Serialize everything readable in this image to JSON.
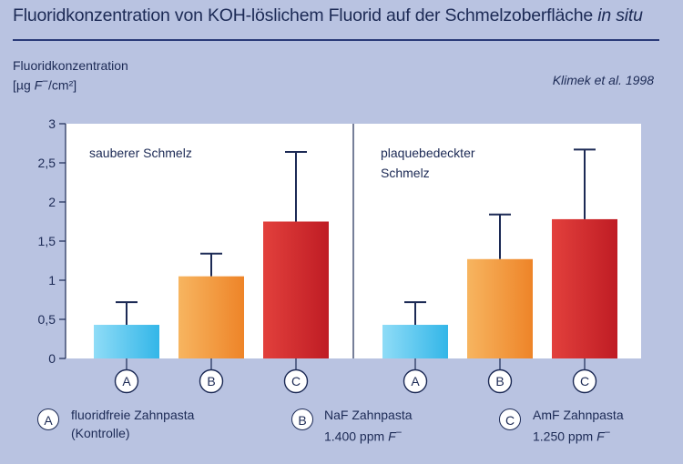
{
  "title": {
    "main": "Fluoridkonzentration von KOH-löslichem Fluorid auf der Schmelzoberfläche ",
    "italic": "in situ"
  },
  "ylabel": {
    "line1": "Fluoridkonzentration",
    "line2_pre": "[µg ",
    "line2_italic": "F",
    "line2_sup": "−",
    "line2_post": "/cm²]"
  },
  "source": "Klimek et al. 1998",
  "colors": {
    "background": "#b9c3e1",
    "plot": "#ffffff",
    "text": "#1c2a55",
    "A": "#5cc8ee",
    "B": "#f39a3a",
    "C": "#d62a2c"
  },
  "chart_data": {
    "type": "bar",
    "ylabel": "Fluoridkonzentration [µg F−/cm²]",
    "ylim": [
      0,
      3
    ],
    "yticks": [
      "0",
      "0,5",
      "1",
      "1,5",
      "2",
      "2,5",
      "3"
    ],
    "categories": [
      "A",
      "B",
      "C"
    ],
    "panels": [
      {
        "label": "sauberer Schmelz",
        "values": [
          0.43,
          1.05,
          1.75
        ],
        "errors": [
          0.29,
          0.29,
          0.89
        ]
      },
      {
        "label_lines": [
          "plaquebedeckter",
          "Schmelz"
        ],
        "values": [
          0.43,
          1.27,
          1.78
        ],
        "errors": [
          0.29,
          0.57,
          0.89
        ]
      }
    ],
    "grid": false,
    "error_bars": "upper"
  },
  "legend": [
    {
      "key": "A",
      "line1": "fluoridfreie Zahnpasta",
      "line2": "(Kontrolle)"
    },
    {
      "key": "B",
      "line1": "NaF Zahnpasta",
      "line2_pre": "1.400 ppm ",
      "line2_italic": "F",
      "line2_sup": "−"
    },
    {
      "key": "C",
      "line1": "AmF Zahnpasta",
      "line2_pre": "1.250 ppm ",
      "line2_italic": "F",
      "line2_sup": "−"
    }
  ]
}
